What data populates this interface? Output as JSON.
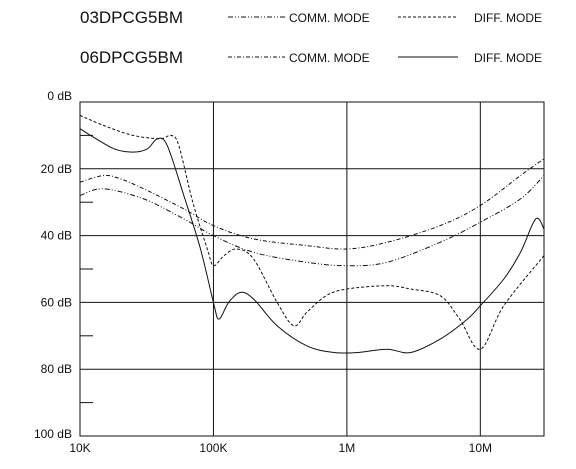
{
  "chart_data": {
    "type": "line",
    "title": "",
    "xlabel": "",
    "ylabel": "",
    "x_scale": "log",
    "y_inverted": true,
    "xlim": [
      10000,
      30000000
    ],
    "ylim": [
      0,
      100
    ],
    "grid": true,
    "x_ticks": [
      {
        "value": 10000,
        "label": "10K"
      },
      {
        "value": 100000,
        "label": "100K"
      },
      {
        "value": 1000000,
        "label": "1M"
      },
      {
        "value": 10000000,
        "label": "10M"
      }
    ],
    "y_ticks": [
      {
        "value": 0,
        "label": "0 dB"
      },
      {
        "value": 20,
        "label": "20 dB"
      },
      {
        "value": 40,
        "label": "40 dB"
      },
      {
        "value": 60,
        "label": "60 dB"
      },
      {
        "value": 80,
        "label": "80 dB"
      },
      {
        "value": 100,
        "label": "100 dB"
      }
    ],
    "y_minor_ticks": [
      10,
      30,
      50,
      70,
      90
    ],
    "legend": {
      "placement": "top",
      "groups": [
        {
          "name": "03DPCG5BM",
          "entries": [
            {
              "label": "COMM. MODE",
              "series": 0
            },
            {
              "label": "DIFF. MODE",
              "series": 1
            }
          ]
        },
        {
          "name": "06DPCG5BM",
          "entries": [
            {
              "label": "COMM. MODE",
              "series": 2
            },
            {
              "label": "DIFF. MODE",
              "series": 3
            }
          ]
        }
      ]
    },
    "series": [
      {
        "style": "dash-dot-dot",
        "points": [
          [
            10000,
            28
          ],
          [
            15000,
            26
          ],
          [
            30000,
            29
          ],
          [
            60000,
            35
          ],
          [
            100000,
            40
          ],
          [
            200000,
            45
          ],
          [
            500000,
            48
          ],
          [
            1000000,
            49
          ],
          [
            2000000,
            48
          ],
          [
            5000000,
            42
          ],
          [
            10000000,
            36
          ],
          [
            20000000,
            29
          ],
          [
            30000000,
            22
          ]
        ]
      },
      {
        "style": "dashed",
        "points": [
          [
            10000,
            4
          ],
          [
            15000,
            7
          ],
          [
            25000,
            10
          ],
          [
            40000,
            11
          ],
          [
            48000,
            10
          ],
          [
            55000,
            13
          ],
          [
            70000,
            30
          ],
          [
            90000,
            44
          ],
          [
            100000,
            49
          ],
          [
            120000,
            46
          ],
          [
            150000,
            44
          ],
          [
            200000,
            47
          ],
          [
            300000,
            60
          ],
          [
            400000,
            67
          ],
          [
            500000,
            63
          ],
          [
            700000,
            58
          ],
          [
            1000000,
            56
          ],
          [
            2000000,
            55
          ],
          [
            3000000,
            56
          ],
          [
            5000000,
            58
          ],
          [
            7000000,
            65
          ],
          [
            10000000,
            74
          ],
          [
            15000000,
            61
          ],
          [
            30000000,
            46
          ]
        ]
      },
      {
        "style": "dash-dot",
        "points": [
          [
            10000,
            24
          ],
          [
            15000,
            22
          ],
          [
            20000,
            23
          ],
          [
            30000,
            26
          ],
          [
            60000,
            32
          ],
          [
            100000,
            37
          ],
          [
            200000,
            41
          ],
          [
            500000,
            43
          ],
          [
            1000000,
            44
          ],
          [
            2000000,
            42
          ],
          [
            5000000,
            37
          ],
          [
            10000000,
            31
          ],
          [
            20000000,
            22
          ],
          [
            30000000,
            17
          ]
        ]
      },
      {
        "style": "solid",
        "points": [
          [
            10000,
            8
          ],
          [
            12000,
            10
          ],
          [
            18000,
            14
          ],
          [
            25000,
            15
          ],
          [
            32000,
            14
          ],
          [
            38000,
            11
          ],
          [
            45000,
            13
          ],
          [
            60000,
            28
          ],
          [
            80000,
            44
          ],
          [
            100000,
            60
          ],
          [
            110000,
            65
          ],
          [
            130000,
            60
          ],
          [
            160000,
            57
          ],
          [
            200000,
            59
          ],
          [
            300000,
            67
          ],
          [
            500000,
            73
          ],
          [
            800000,
            75
          ],
          [
            1200000,
            75
          ],
          [
            2000000,
            74
          ],
          [
            3000000,
            75
          ],
          [
            5000000,
            71
          ],
          [
            8000000,
            65
          ],
          [
            10000000,
            61
          ],
          [
            15000000,
            53
          ],
          [
            20000000,
            45
          ],
          [
            26000000,
            35
          ],
          [
            30000000,
            38
          ]
        ]
      }
    ]
  }
}
